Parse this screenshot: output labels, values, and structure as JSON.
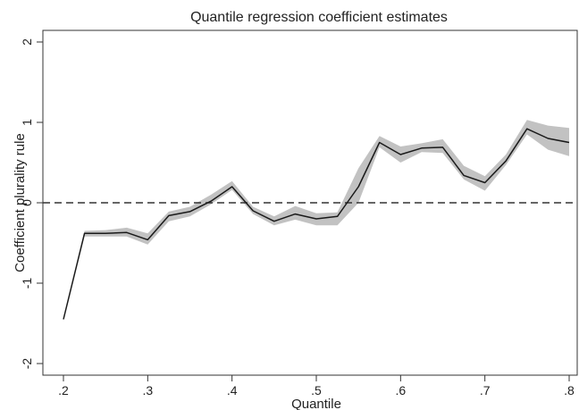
{
  "chart_data": {
    "type": "line",
    "title": "Quantile regression coefficient estimates",
    "xlabel": "Quantile",
    "ylabel": "Coefficient plurality rule",
    "xlim": [
      0.2,
      0.8
    ],
    "ylim": [
      -2,
      2
    ],
    "x_ticks": [
      {
        "value": 0.2,
        "label": ".2"
      },
      {
        "value": 0.3,
        "label": ".3"
      },
      {
        "value": 0.4,
        "label": ".4"
      },
      {
        "value": 0.5,
        "label": ".5"
      },
      {
        "value": 0.6,
        "label": ".6"
      },
      {
        "value": 0.7,
        "label": ".7"
      },
      {
        "value": 0.8,
        "label": ".8"
      }
    ],
    "y_ticks": [
      {
        "value": 2,
        "label": "2"
      },
      {
        "value": 1,
        "label": "1"
      },
      {
        "value": 0,
        "label": "0"
      },
      {
        "value": -1,
        "label": "-1"
      },
      {
        "value": -2,
        "label": "-2"
      }
    ],
    "reference_line": {
      "y": 0,
      "style": "dashed"
    },
    "series": [
      {
        "x": [
          0.2,
          0.225,
          0.25,
          0.275,
          0.3,
          0.325,
          0.35,
          0.375,
          0.4,
          0.425,
          0.45,
          0.475,
          0.5,
          0.525,
          0.55,
          0.575,
          0.6,
          0.625,
          0.65,
          0.675,
          0.7,
          0.725,
          0.75,
          0.775,
          0.8
        ],
        "values": [
          -1.45,
          -0.38,
          -0.38,
          -0.37,
          -0.46,
          -0.16,
          -0.11,
          0.02,
          0.2,
          -0.1,
          -0.23,
          -0.14,
          -0.2,
          -0.17,
          0.2,
          0.75,
          0.6,
          0.68,
          0.69,
          0.34,
          0.25,
          0.52,
          0.92,
          0.8,
          0.75
        ],
        "ci_lower": [
          -1.45,
          -0.42,
          -0.42,
          -0.42,
          -0.52,
          -0.23,
          -0.17,
          -0.02,
          0.16,
          -0.14,
          -0.28,
          -0.21,
          -0.28,
          -0.28,
          0.0,
          0.69,
          0.5,
          0.63,
          0.62,
          0.29,
          0.15,
          0.47,
          0.85,
          0.66,
          0.58
        ],
        "ci_upper": [
          -1.45,
          -0.35,
          -0.34,
          -0.31,
          -0.38,
          -0.11,
          -0.05,
          0.1,
          0.27,
          -0.05,
          -0.17,
          -0.04,
          -0.13,
          -0.12,
          0.43,
          0.83,
          0.7,
          0.74,
          0.79,
          0.46,
          0.33,
          0.6,
          1.03,
          0.96,
          0.93
        ]
      }
    ],
    "colors": {
      "line": "#1a1a1a",
      "band": "#c2c2c2",
      "axis": "#333333",
      "reference": "#333333"
    },
    "grid": false,
    "legend": "none"
  }
}
